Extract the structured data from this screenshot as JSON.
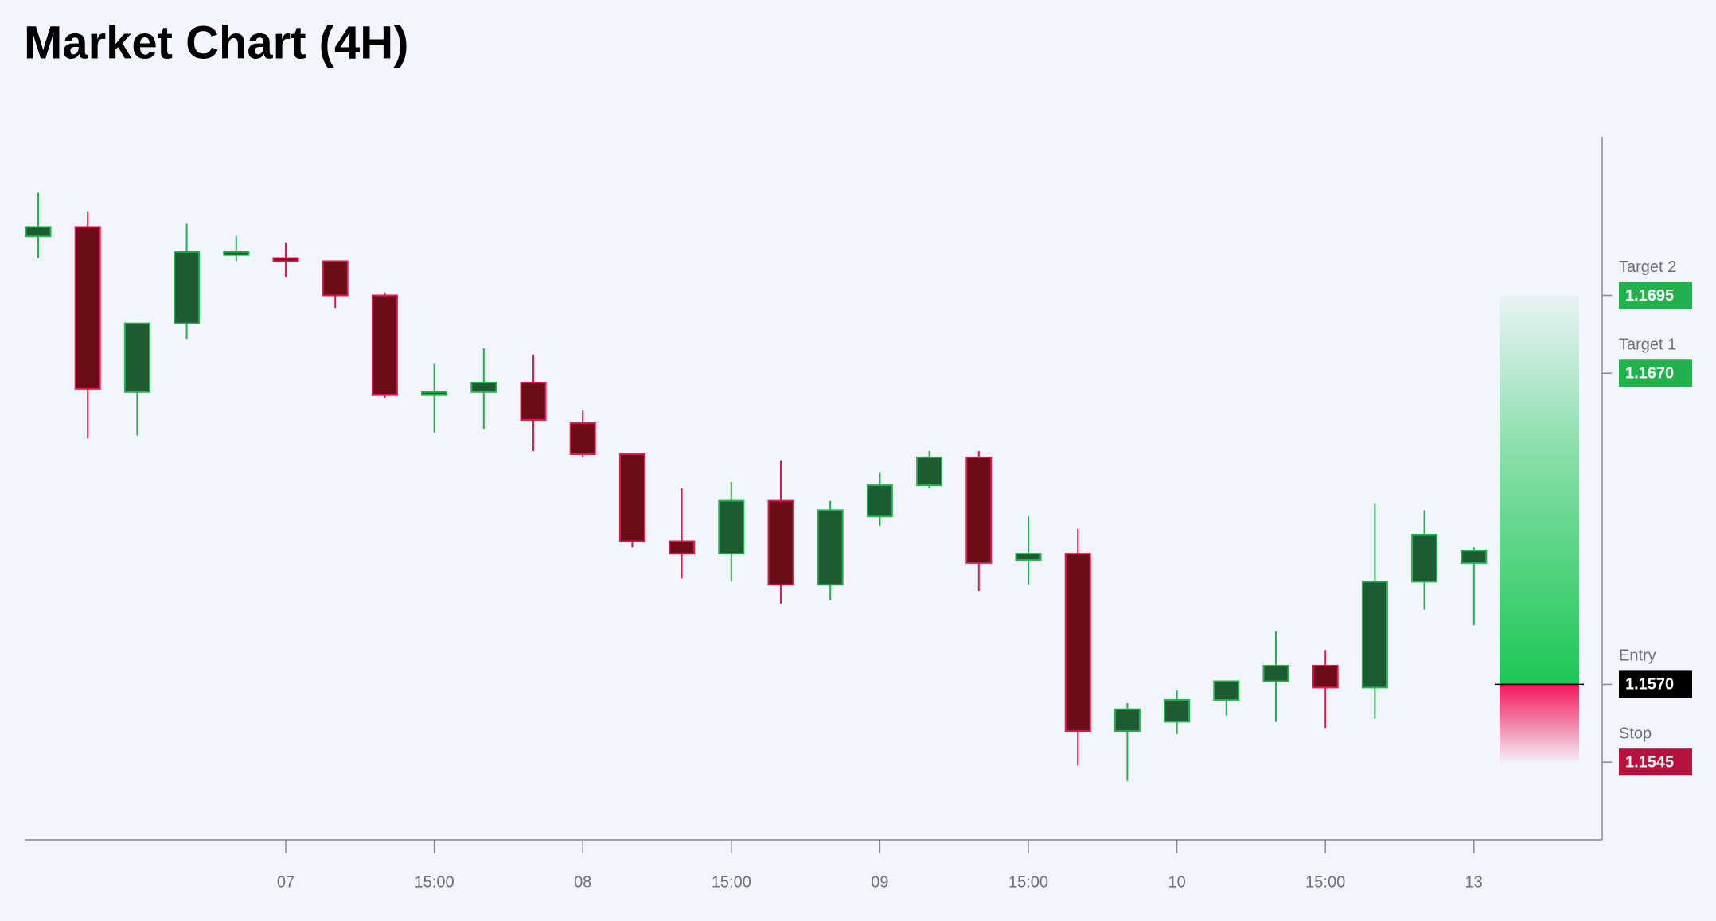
{
  "chart_data": {
    "type": "candlestick",
    "title": "Market Chart (4H)",
    "categories": [
      null,
      null,
      null,
      null,
      null,
      "07",
      null,
      null,
      "15:00",
      null,
      null,
      "08",
      null,
      null,
      "15:00",
      null,
      null,
      "09",
      null,
      null,
      "15:00",
      null,
      null,
      "10",
      null,
      null,
      "15:00",
      null,
      null,
      "13"
    ],
    "open": [
      1.1714,
      1.1717,
      1.1664,
      1.1686,
      1.1708,
      1.1707,
      1.1706,
      1.1695,
      1.1663,
      1.1664,
      1.1667,
      1.1654,
      1.1644,
      1.1616,
      1.1612,
      1.1629,
      1.1602,
      1.1624,
      1.1634,
      1.1643,
      1.161,
      1.1612,
      1.1555,
      1.1558,
      1.1565,
      1.1571,
      1.1576,
      1.1569,
      1.1603,
      1.1609
    ],
    "high": [
      1.1728,
      1.1722,
      1.1686,
      1.1718,
      1.1714,
      1.1712,
      1.1706,
      1.1696,
      1.1673,
      1.1678,
      1.1676,
      1.1658,
      1.1644,
      1.1633,
      1.1635,
      1.1642,
      1.1629,
      1.1638,
      1.1645,
      1.1645,
      1.1624,
      1.162,
      1.1564,
      1.1568,
      1.1571,
      1.1587,
      1.1581,
      1.1628,
      1.1626,
      1.1614
    ],
    "low": [
      1.1707,
      1.1649,
      1.165,
      1.1681,
      1.1706,
      1.1701,
      1.1691,
      1.1662,
      1.1651,
      1.1652,
      1.1645,
      1.1643,
      1.1614,
      1.1604,
      1.1603,
      1.1596,
      1.1597,
      1.1621,
      1.1633,
      1.16,
      1.1602,
      1.1544,
      1.1539,
      1.1554,
      1.156,
      1.1558,
      1.1556,
      1.1559,
      1.1594,
      1.1589
    ],
    "close": [
      1.1717,
      1.1665,
      1.1686,
      1.1709,
      1.1709,
      1.1706,
      1.1695,
      1.1663,
      1.1664,
      1.1667,
      1.1655,
      1.1644,
      1.1616,
      1.1612,
      1.1629,
      1.1602,
      1.1626,
      1.1634,
      1.1643,
      1.1609,
      1.1612,
      1.1555,
      1.1562,
      1.1565,
      1.1571,
      1.1576,
      1.1569,
      1.1603,
      1.1618,
      1.1613
    ],
    "up_color": "#22b14c",
    "up_fill": "#1e5a32",
    "down_color": "#e0194f",
    "down_fill": "#6b0d16",
    "ylim": [
      1.152,
      1.1746
    ],
    "levels": [
      {
        "name": "Target 2",
        "value": 1.1695,
        "value_label": "1.1695",
        "color": "#22b14c"
      },
      {
        "name": "Target 1",
        "value": 1.167,
        "value_label": "1.1670",
        "color": "#22b14c"
      },
      {
        "name": "Entry",
        "value": 1.157,
        "value_label": "1.1570",
        "color": "#000000"
      },
      {
        "name": "Stop",
        "value": 1.1545,
        "value_label": "1.1545",
        "color": "#b5123e"
      }
    ]
  }
}
